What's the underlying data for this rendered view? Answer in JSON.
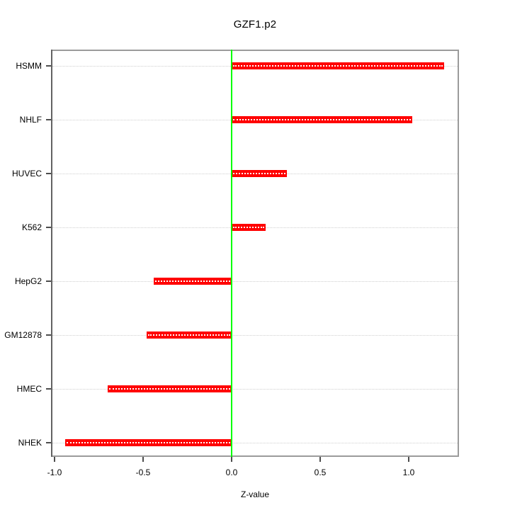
{
  "chart_data": {
    "type": "bar",
    "orientation": "horizontal",
    "title": "GZF1.p2",
    "xlabel": "Z-value",
    "categories": [
      "HSMM",
      "NHLF",
      "HUVEC",
      "K562",
      "HepG2",
      "GM12878",
      "HMEC",
      "NHEK"
    ],
    "values": [
      1.2,
      1.02,
      0.31,
      0.19,
      -0.44,
      -0.48,
      -0.7,
      -0.94
    ],
    "x_ticks": [
      -1.0,
      -0.5,
      0.0,
      0.5,
      1.0
    ],
    "x_tick_labels": [
      "-1.0",
      "-0.5",
      "0.0",
      "0.5",
      "1.0"
    ],
    "xlim": [
      -1.02,
      1.284
    ],
    "zero_line_x": 0.0,
    "grid": "horizontal dotted row guides",
    "legend": "none",
    "colors": {
      "bar": "#ff0000",
      "bar_center_dots": "#ffffff",
      "zero_line": "#00ff00",
      "grid": "#cfcfcf",
      "frame": "#9b9b9b",
      "axis_left": "#636363",
      "tick": "#4d4d4d",
      "text": "#000000",
      "background": "#ffffff"
    }
  }
}
